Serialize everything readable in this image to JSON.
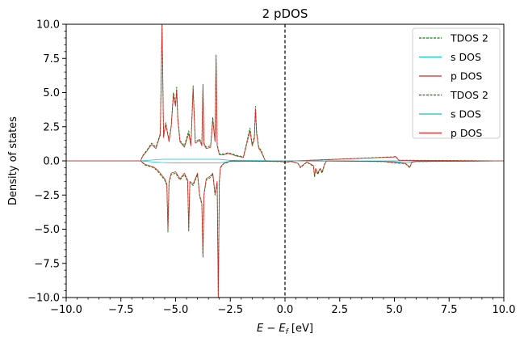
{
  "chart_data": {
    "type": "line",
    "title": "2 pDOS",
    "xlabel_main": "E − E",
    "xlabel_sub": "f",
    "xlabel_unit": " [eV]",
    "ylabel": "Density of states",
    "xlim": [
      -10,
      10
    ],
    "ylim": [
      -10,
      10
    ],
    "xticks": [
      -10,
      -7.5,
      -5,
      -2.5,
      0,
      2.5,
      5,
      7.5,
      10
    ],
    "xtick_labels": [
      "−10.0",
      "−7.5",
      "−5.0",
      "−2.5",
      "0.0",
      "2.5",
      "5.0",
      "7.5",
      "10.0"
    ],
    "yticks": [
      -10,
      -7.5,
      -5,
      -2.5,
      0,
      2.5,
      5,
      7.5,
      10
    ],
    "ytick_labels": [
      "−10.0",
      "−7.5",
      "−5.0",
      "−2.5",
      "0.0",
      "2.5",
      "5.0",
      "7.5",
      "10.0"
    ],
    "fermi_level": 0,
    "legend_position": "top-right",
    "legend": [
      {
        "label": "TDOS 2",
        "color": "#008000",
        "dashed": true
      },
      {
        "label": "s DOS",
        "color": "#17becf",
        "dashed": false
      },
      {
        "label": "p DOS",
        "color": "#d62728",
        "dashed": false
      },
      {
        "label": "TDOS 2",
        "color": "#008000",
        "dashed": true
      },
      {
        "label": "s DOS",
        "color": "#17becf",
        "dashed": false
      },
      {
        "label": "p DOS",
        "color": "#d62728",
        "dashed": false
      }
    ],
    "series": [
      {
        "name": "TDOS 2",
        "spin": "up",
        "color": "#008000",
        "dashed": true,
        "x": [
          -10,
          -6.6,
          -6.5,
          -6.3,
          -6.1,
          -5.9,
          -5.7,
          -5.62,
          -5.55,
          -5.45,
          -5.3,
          -5.2,
          -5.1,
          -5.0,
          -4.95,
          -4.9,
          -4.8,
          -4.6,
          -4.4,
          -4.3,
          -4.2,
          -4.1,
          -3.9,
          -3.8,
          -3.75,
          -3.7,
          -3.6,
          -3.4,
          -3.3,
          -3.2,
          -3.15,
          -3.1,
          -3.0,
          -2.8,
          -2.6,
          -2.4,
          -2.2,
          -1.9,
          -1.6,
          -1.5,
          -1.4,
          -1.35,
          -1.3,
          -1.2,
          -1.1,
          -0.9,
          -0.5,
          0,
          0.5,
          5.0,
          5.05,
          5.2,
          10
        ],
        "y": [
          0,
          0,
          0.4,
          0.8,
          1.3,
          1.0,
          2.0,
          10.0,
          1.8,
          2.8,
          1.5,
          2.6,
          5.0,
          4.2,
          5.4,
          3.2,
          1.5,
          1.1,
          2.2,
          1.2,
          5.5,
          1.4,
          1.6,
          1.2,
          5.6,
          1.3,
          1.0,
          1.1,
          3.2,
          1.5,
          7.8,
          1.2,
          0.5,
          0.5,
          0.6,
          0.5,
          0.4,
          0.3,
          2.4,
          1.2,
          1.8,
          4.0,
          2.2,
          1.0,
          0.8,
          0,
          0,
          0,
          0,
          0.3,
          0.35,
          0.05,
          0
        ]
      },
      {
        "name": "s DOS",
        "spin": "up",
        "color": "#17becf",
        "dashed": false,
        "x": [
          -10,
          -6.6,
          -5.6,
          -3.0,
          -2.6,
          -1.0,
          -0.5,
          0,
          10
        ],
        "y": [
          0,
          0,
          0.12,
          0.12,
          0.05,
          0.03,
          0,
          0,
          0
        ]
      },
      {
        "name": "p DOS",
        "spin": "up",
        "color": "#d62728",
        "dashed": false,
        "x": [
          -10,
          -6.6,
          -6.5,
          -6.3,
          -6.1,
          -5.9,
          -5.7,
          -5.62,
          -5.55,
          -5.45,
          -5.3,
          -5.2,
          -5.1,
          -5.0,
          -4.95,
          -4.9,
          -4.8,
          -4.6,
          -4.4,
          -4.3,
          -4.2,
          -4.1,
          -3.9,
          -3.8,
          -3.75,
          -3.7,
          -3.6,
          -3.4,
          -3.3,
          -3.2,
          -3.15,
          -3.1,
          -3.0,
          -2.8,
          -2.6,
          -2.4,
          -2.2,
          -1.9,
          -1.6,
          -1.5,
          -1.4,
          -1.35,
          -1.3,
          -1.2,
          -1.1,
          -0.9,
          -0.5,
          0,
          0.5,
          5.0,
          5.05,
          5.2,
          10
        ],
        "y": [
          0,
          0,
          0.35,
          0.75,
          1.2,
          0.9,
          1.9,
          10.0,
          1.7,
          2.7,
          1.4,
          2.5,
          4.8,
          4.0,
          5.2,
          3.0,
          1.4,
          1.0,
          2.0,
          1.1,
          5.3,
          1.3,
          1.5,
          1.1,
          5.4,
          1.2,
          0.9,
          1.0,
          3.0,
          1.4,
          7.6,
          1.1,
          0.45,
          0.45,
          0.55,
          0.45,
          0.35,
          0.25,
          2.2,
          1.1,
          1.6,
          3.8,
          2.0,
          0.9,
          0.7,
          0,
          0,
          0,
          0,
          0.28,
          0.32,
          0.04,
          0
        ]
      },
      {
        "name": "TDOS 2",
        "spin": "down",
        "color": "#008000",
        "dashed": true,
        "x": [
          -10,
          -6.6,
          -6.4,
          -6.2,
          -6.0,
          -5.8,
          -5.6,
          -5.5,
          -5.4,
          -5.35,
          -5.3,
          -5.2,
          -5.0,
          -4.8,
          -4.6,
          -4.45,
          -4.4,
          -4.35,
          -4.2,
          -4.0,
          -3.9,
          -3.8,
          -3.75,
          -3.7,
          -3.6,
          -3.4,
          -3.3,
          -3.2,
          -3.1,
          -3.05,
          -3.0,
          -2.95,
          -2.8,
          -2.6,
          -2.5,
          -0.2,
          0,
          0.3,
          0.6,
          0.7,
          1.0,
          1.3,
          1.35,
          1.4,
          1.5,
          1.6,
          1.7,
          1.8,
          1.9,
          2.0,
          4.5,
          5.0,
          5.5,
          5.7,
          5.8,
          6.0,
          10
        ],
        "y": [
          0,
          0,
          -0.3,
          -0.4,
          -0.5,
          -0.8,
          -1.2,
          -1.4,
          -1.8,
          -5.2,
          -1.6,
          -1.0,
          -0.9,
          -1.4,
          -1.0,
          -1.5,
          -5.2,
          -1.6,
          -1.8,
          -1.0,
          -2.6,
          -3.2,
          -7.1,
          -2.5,
          -1.4,
          -1.2,
          -1.0,
          -2.5,
          -1.6,
          -10.0,
          -1.5,
          -0.5,
          -0.2,
          -0.1,
          0,
          -0.05,
          -0.1,
          -0.05,
          -0.2,
          -0.5,
          -0.1,
          -0.4,
          -1.2,
          -0.6,
          -1.0,
          -0.6,
          -0.9,
          -0.3,
          0,
          0,
          -0.05,
          -0.15,
          -0.2,
          -0.5,
          -0.1,
          -0.05,
          0
        ]
      },
      {
        "name": "s DOS",
        "spin": "down",
        "color": "#17becf",
        "dashed": false,
        "x": [
          -10,
          -6.6,
          -6.0,
          -5.6,
          -5.0,
          -4.0,
          -3.0,
          -2.6,
          -0.5,
          0,
          5.0,
          5.5,
          6.0,
          10
        ],
        "y": [
          0,
          0,
          -0.08,
          -0.12,
          -0.15,
          -0.15,
          -0.15,
          -0.05,
          0,
          0,
          -0.05,
          -0.15,
          -0.05,
          0
        ]
      },
      {
        "name": "p DOS",
        "spin": "down",
        "color": "#d62728",
        "dashed": false,
        "x": [
          -10,
          -6.6,
          -6.4,
          -6.2,
          -6.0,
          -5.8,
          -5.6,
          -5.5,
          -5.4,
          -5.35,
          -5.3,
          -5.2,
          -5.0,
          -4.8,
          -4.6,
          -4.45,
          -4.4,
          -4.35,
          -4.2,
          -4.0,
          -3.9,
          -3.8,
          -3.75,
          -3.7,
          -3.6,
          -3.4,
          -3.3,
          -3.2,
          -3.1,
          -3.05,
          -3.0,
          -2.95,
          -2.8,
          -2.6,
          -2.5,
          -0.2,
          0,
          0.3,
          0.6,
          0.7,
          1.0,
          1.3,
          1.35,
          1.4,
          1.5,
          1.6,
          1.7,
          1.8,
          1.9,
          2.0,
          4.5,
          5.0,
          5.5,
          5.7,
          5.8,
          6.0,
          10
        ],
        "y": [
          0,
          0,
          -0.25,
          -0.35,
          -0.45,
          -0.7,
          -1.1,
          -1.3,
          -1.7,
          -5.0,
          -1.5,
          -0.9,
          -0.8,
          -1.3,
          -0.9,
          -1.4,
          -5.0,
          -1.5,
          -1.7,
          -0.9,
          -2.5,
          -3.1,
          -7.0,
          -2.4,
          -1.3,
          -1.1,
          -0.9,
          -2.4,
          -1.5,
          -10.0,
          -1.4,
          -0.45,
          -0.18,
          -0.08,
          0,
          -0.04,
          -0.08,
          -0.04,
          -0.18,
          -0.45,
          -0.08,
          -0.35,
          -1.1,
          -0.55,
          -0.9,
          -0.55,
          -0.8,
          -0.25,
          0,
          0,
          -0.04,
          -0.12,
          -0.18,
          -0.45,
          -0.08,
          -0.04,
          0
        ]
      }
    ]
  }
}
